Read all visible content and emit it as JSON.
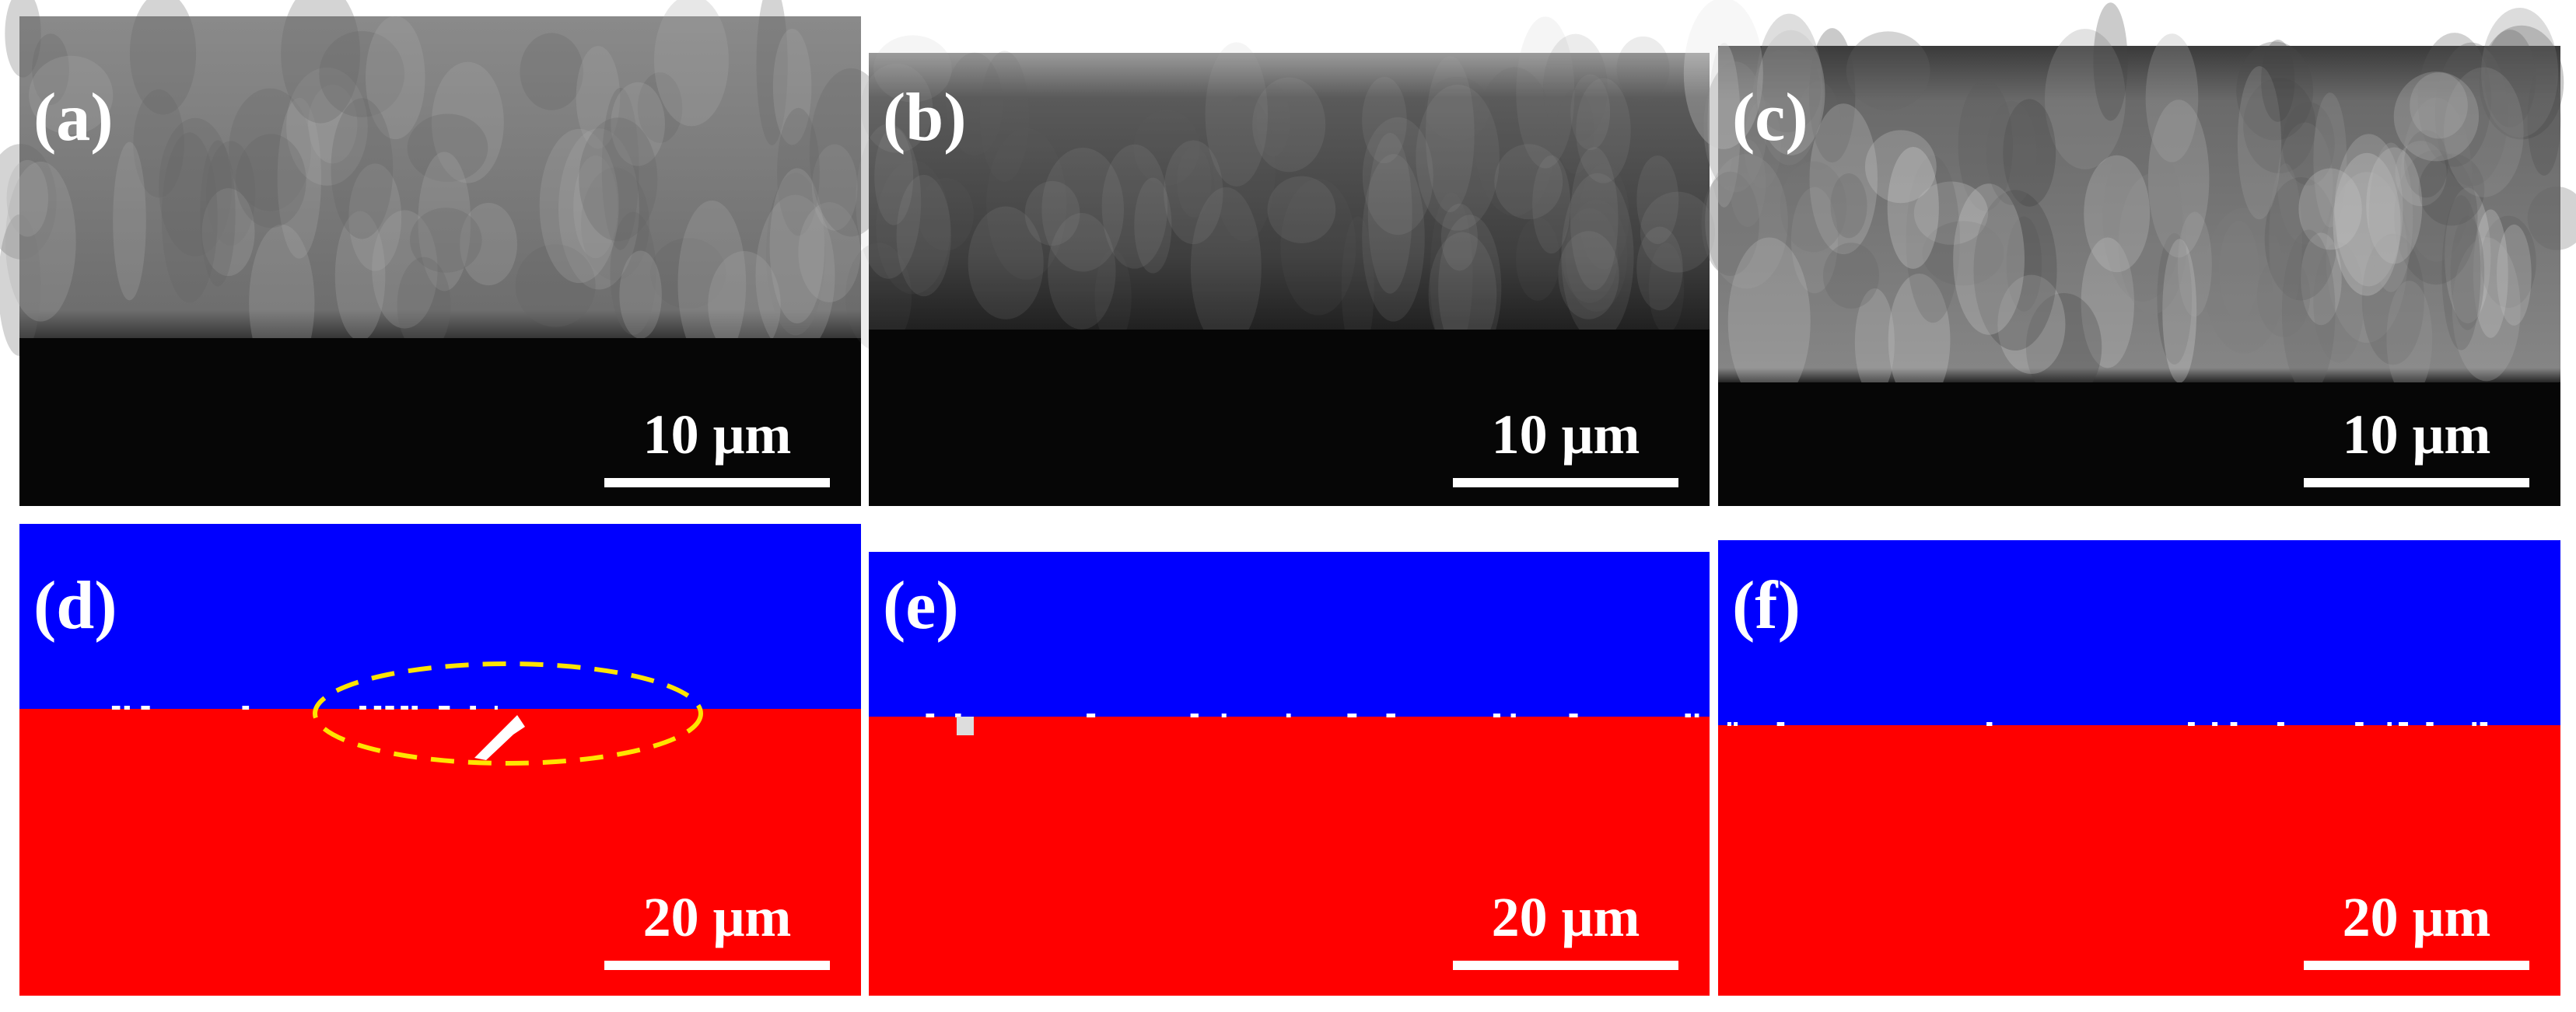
{
  "panels": [
    {
      "label": "(a)",
      "scale_bar": "10 μm"
    },
    {
      "label": "(b)",
      "scale_bar": "10 μm"
    },
    {
      "label": "(c)",
      "scale_bar": "10 μm"
    },
    {
      "label": "(d)",
      "scale_bar": "20 μm"
    },
    {
      "label": "(e)",
      "scale_bar": "20 μm"
    },
    {
      "label": "(f)",
      "scale_bar": "20 μm"
    }
  ]
}
